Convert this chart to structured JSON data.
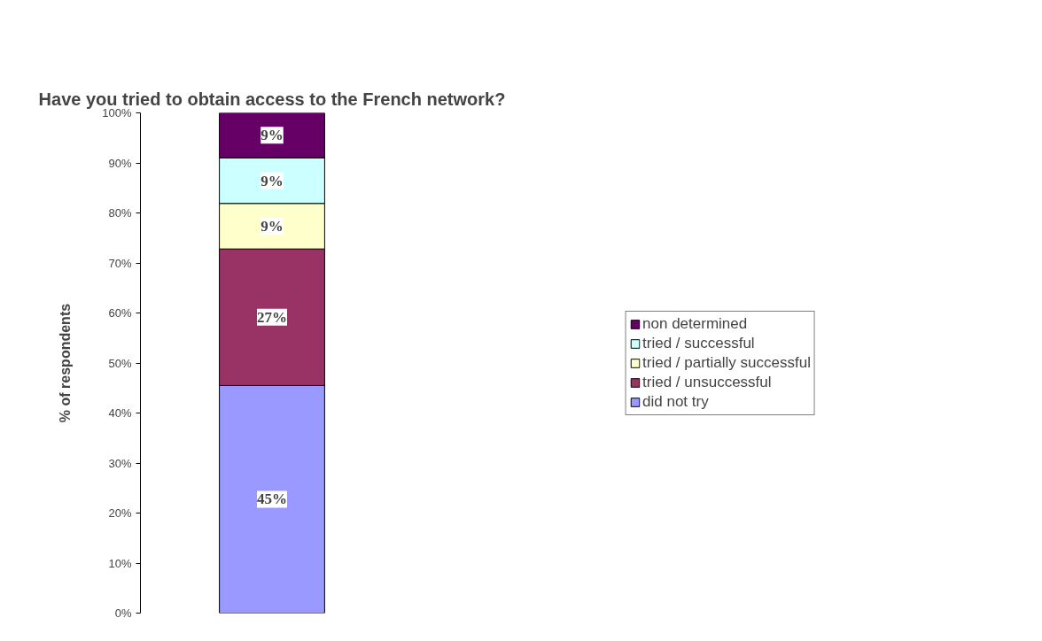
{
  "chart_data": {
    "type": "bar",
    "title": "Have you tried to obtain access to the French network?",
    "ylabel": "% of respondents",
    "categories": [
      null
    ],
    "stacked": true,
    "series": [
      {
        "name": "did not try",
        "color": "#9999ff",
        "values": [
          45.5
        ],
        "value_labels": [
          "45%"
        ]
      },
      {
        "name": "tried / unsuccessful",
        "color": "#993366",
        "values": [
          27.3
        ],
        "value_labels": [
          "27%"
        ]
      },
      {
        "name": "tried / partially successful",
        "color": "#ffffcc",
        "values": [
          9.1
        ],
        "value_labels": [
          "9%"
        ]
      },
      {
        "name": "tried / successful",
        "color": "#ccffff",
        "values": [
          9.1
        ],
        "value_labels": [
          "9%"
        ]
      },
      {
        "name": "non determined",
        "color": "#660066",
        "values": [
          9.1
        ],
        "value_labels": [
          "9%"
        ]
      }
    ],
    "ylim": [
      0,
      100
    ],
    "yticks": [
      {
        "value": 0,
        "label": "0%"
      },
      {
        "value": 10,
        "label": "10%"
      },
      {
        "value": 20,
        "label": "20%"
      },
      {
        "value": 30,
        "label": "30%"
      },
      {
        "value": 40,
        "label": "40%"
      },
      {
        "value": 50,
        "label": "50%"
      },
      {
        "value": 60,
        "label": "60%"
      },
      {
        "value": 70,
        "label": "70%"
      },
      {
        "value": 80,
        "label": "80%"
      },
      {
        "value": 90,
        "label": "90%"
      },
      {
        "value": 100,
        "label": "100%"
      }
    ],
    "grid": false,
    "legend": "right"
  }
}
